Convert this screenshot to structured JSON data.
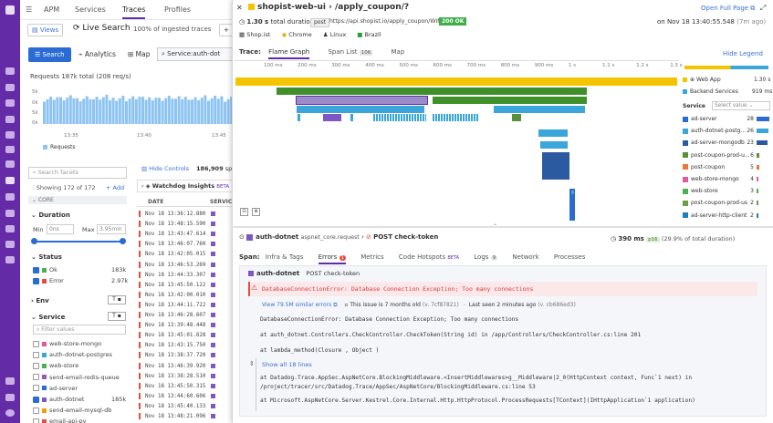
{
  "nav": {
    "items": [
      "logo-icon",
      "search-icon",
      "home-icon",
      "dashboard-icon",
      "list-icon",
      "infra-icon",
      "apm-icon",
      "logs-icon",
      "security-icon",
      "ux-icon",
      "chat-icon",
      "help-icon",
      "user-icon"
    ]
  },
  "topbar": {
    "apm": "APM",
    "services": "Services",
    "traces": "Traces",
    "profiles": "Profiles"
  },
  "toolbar": {
    "views": "Views",
    "live_search": "Live Search",
    "ingested": "100% of ingested traces",
    "plus": "+"
  },
  "search_row": {
    "search": "Search",
    "analytics": "Analytics",
    "map": "Map",
    "query": "Service:auth-dot"
  },
  "requests_chart": {
    "title": "Requests",
    "summary": "187k total (208 req/s)",
    "y_labels": [
      "5k",
      "0k",
      "5k",
      "0k"
    ],
    "x_labels": [
      "13:35",
      "13:40",
      "13:45"
    ],
    "legend": "Requests",
    "chart_data": {
      "type": "bar",
      "title": "Requests",
      "categories": [
        "13:35",
        "13:40",
        "13:45"
      ],
      "series": [
        {
          "name": "Requests",
          "values": [
            7,
            7,
            7
          ]
        }
      ]
    }
  },
  "facets": {
    "search_placeholder": "Search facets",
    "showing": "Showing 172 of 172",
    "add": "+ Add",
    "core": "CORE",
    "duration": "Duration",
    "min_label": "Min",
    "min_val": "0ns",
    "max_label": "Max",
    "max_val": "3.95min",
    "status": "Status",
    "ok": "Ok",
    "ok_count": "183k",
    "error": "Error",
    "error_count": "2.97k",
    "env": "Env",
    "service": "Service",
    "filter_placeholder": "Filter values",
    "services": [
      {
        "name": "web-store-mongo",
        "color": "#e05b9a",
        "count": "",
        "checked": false
      },
      {
        "name": "auth-dotnet-postgres",
        "color": "#3aa6d9",
        "count": "",
        "checked": false
      },
      {
        "name": "web-store",
        "color": "#4caf50",
        "count": "",
        "checked": false
      },
      {
        "name": "send-email-redis-queue",
        "color": "#9b59b6",
        "count": "",
        "checked": false
      },
      {
        "name": "ad-server",
        "color": "#2b6cd4",
        "count": "",
        "checked": false
      },
      {
        "name": "auth-dotnet",
        "color": "#7e57c2",
        "count": "185k",
        "checked": true
      },
      {
        "name": "send-email-mysql-db",
        "color": "#f39c12",
        "count": "",
        "checked": false
      },
      {
        "name": "email-api-py",
        "color": "#e74c3c",
        "count": "",
        "checked": false
      }
    ]
  },
  "results": {
    "hide_controls": "Hide Controls",
    "count": "186,909",
    "spans": "spans",
    "watchdog": "Watchdog Insights",
    "beta": "BETA",
    "col_date": "DATE",
    "col_service": "SERVICE",
    "rows": [
      "Nov 18 13:36:12.880",
      "Nov 18 13:48:15.590",
      "Nov 18 13:43:47.614",
      "Nov 18 13:46:07.760",
      "Nov 18 13:42:05.015",
      "Nov 18 13:46:53.269",
      "Nov 18 13:44:33.307",
      "Nov 18 13:45:50.122",
      "Nov 18 13:42:00.010",
      "Nov 18 13:44:11.722",
      "Nov 18 13:46:28.607",
      "Nov 18 13:39:48.448",
      "Nov 18 13:45:01.628",
      "Nov 18 13:43:15.750",
      "Nov 18 13:38:37.720",
      "Nov 18 13:46:39.920",
      "Nov 18 13:38:28.510",
      "Nov 18 13:45:50.315",
      "Nov 18 13:44:60.606",
      "Nov 18 13:45:40.133",
      "Nov 18 13:48:21.096"
    ]
  },
  "trace": {
    "service": "shopist-web-ui",
    "resource": "/apply_coupon/?",
    "open_full": "Open Full Page",
    "duration": "1.30 s",
    "duration_label": "total duration",
    "method": "post",
    "url": "https://api.shopist.io/apply_coupon/WINTER100",
    "status": "200 OK",
    "timestamp": "on Nov 18 13:40:55.548",
    "ago": "(7m ago)",
    "tags": [
      "Shop.ist",
      "Chrome",
      "Linux",
      "Brazil"
    ],
    "trace_label": "Trace:",
    "tab_flame": "Flame Graph",
    "tab_span": "Span List",
    "span_count": "106",
    "tab_map": "Map",
    "hide_legend": "Hide Legend",
    "ticks": [
      "100 ms",
      "200 ms",
      "300 ms",
      "400 ms",
      "500 ms",
      "600 ms",
      "700 ms",
      "800 ms",
      "900 ms",
      "1 s",
      "1.1 s",
      "1.2 s",
      "1.3 s"
    ],
    "legend": {
      "web_app": "Web App",
      "web_app_val": "1.30 s",
      "backend": "Backend Services",
      "backend_val": "919 ms",
      "service_label": "Service",
      "select_value": "Select value",
      "services": [
        {
          "name": "ad-server",
          "count": "28",
          "color": "#2b6cd4"
        },
        {
          "name": "auth-dotnet-postg...",
          "count": "26",
          "color": "#3aa6d9"
        },
        {
          "name": "ad-server-mongodb",
          "count": "23",
          "color": "#2c5aa0"
        },
        {
          "name": "post-coupon-prod-u...",
          "count": "6",
          "color": "#5a8f3a"
        },
        {
          "name": "post-coupon",
          "count": "5",
          "color": "#e57a3a"
        },
        {
          "name": "web-store-mongo",
          "count": "4",
          "color": "#e05b9a"
        },
        {
          "name": "web-store",
          "count": "3",
          "color": "#4caf50"
        },
        {
          "name": "post-coupon-prod-us",
          "count": "2",
          "color": "#6c9f4a"
        },
        {
          "name": "ad-server-http-client",
          "count": "2",
          "color": "#1f7fb8"
        }
      ]
    }
  },
  "span": {
    "service": "auth-dotnet",
    "resource": "aspnet_core.request",
    "operation": "POST check-token",
    "duration": "390 ms",
    "pct": "p16",
    "pct_label": "(29.9% of total duration)",
    "span_label": "Span:",
    "tab_infra": "Infra & Tags",
    "tab_errors": "Errors",
    "errors_count": "1",
    "tab_metrics": "Metrics",
    "tab_hotspots": "Code Hotspots",
    "hotspots_beta": "BETA",
    "tab_logs": "Logs",
    "logs_count": "9",
    "tab_network": "Network",
    "tab_processes": "Processes",
    "sub_service": "auth-dotnet",
    "sub_op": "POST check-token",
    "error_title": "DatabaseConnectionError: Database Connection Exception; Too many connections",
    "similar": "View 79.5M similar errors",
    "issue_age": "This issue is 7 months old",
    "version_a": "(v. 7cf87821)",
    "last_seen": "Last seen 2 minutes ago",
    "version_b": "(v. cb686ed3)",
    "stack": [
      "DatabaseConnectionError: Database Connection Exception; Too many connections",
      "at auth_dotnet.Controllers.CheckController.CheckToken(String id) in /app/Controllers/CheckController.cs:line 201",
      "at lambda_method(Closure , Object )"
    ],
    "show_all": "Show all 18 lines",
    "stack2": [
      "at Datadog.Trace.AppSec.AspNetCore.BlockingMiddleware.<InsertMiddlewares>g__Middleware|2_0(HttpContext context, Func`1 next) in",
      "/project/tracer/src/Datadog.Trace/AppSec/AspNetCore/BlockingMiddleware.cs:line 53",
      "at Microsoft.AspNetCore.Server.Kestrel.Core.Internal.Http.HttpProtocol.ProcessRequests[TContext](IHttpApplication`1 application)"
    ]
  }
}
